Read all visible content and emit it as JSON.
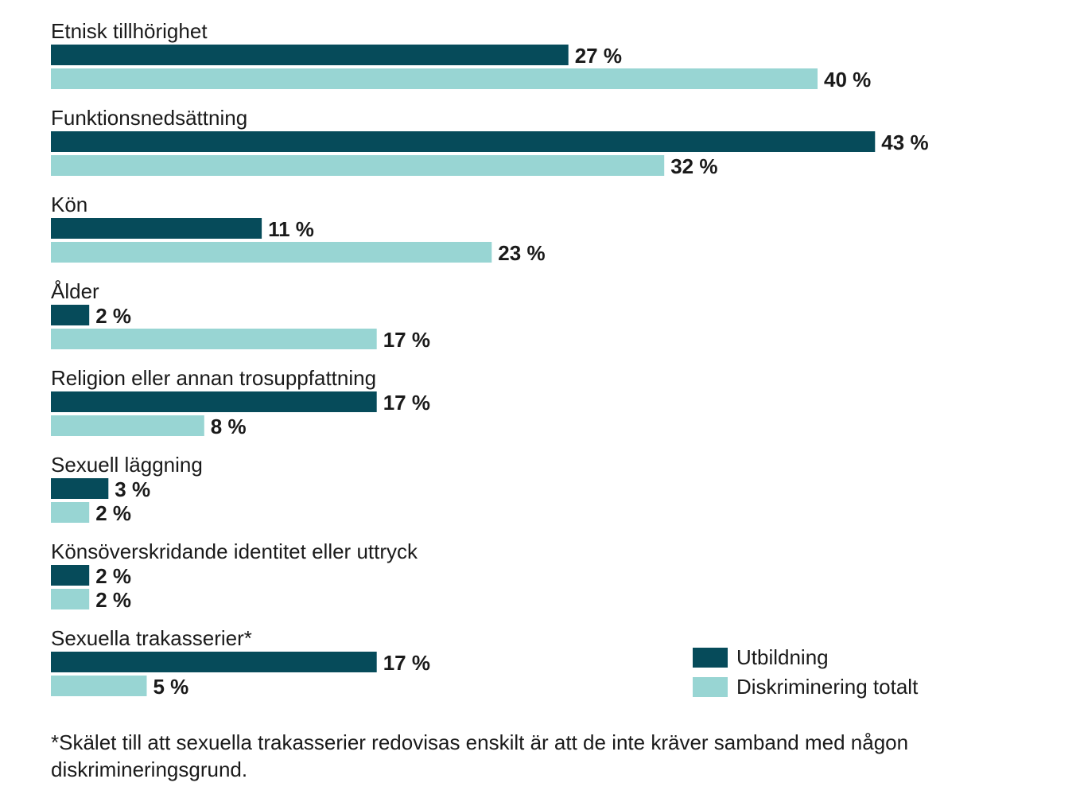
{
  "chart_data": {
    "type": "bar",
    "orientation": "horizontal",
    "categories": [
      "Etnisk tillhörighet",
      "Funktionsnedsättning",
      "Kön",
      "Ålder",
      "Religion eller annan trosuppfattning",
      "Sexuell läggning",
      "Könsöverskridande identitet eller uttryck",
      "Sexuella trakasserier*"
    ],
    "series": [
      {
        "name": "Utbildning",
        "color": "#064b5a",
        "values": [
          27,
          43,
          11,
          2,
          17,
          3,
          2,
          17
        ]
      },
      {
        "name": "Diskriminering totalt",
        "color": "#98d5d3",
        "values": [
          40,
          32,
          23,
          17,
          8,
          2,
          2,
          5
        ]
      }
    ],
    "value_suffix": " %",
    "xlim": [
      0,
      45
    ],
    "grid": false,
    "legend_position": "bottom-right"
  },
  "footnote": "*Skälet till att sexuella trakasserier redovisas enskilt är att de inte kräver samband med någon diskrimineringsgrund."
}
